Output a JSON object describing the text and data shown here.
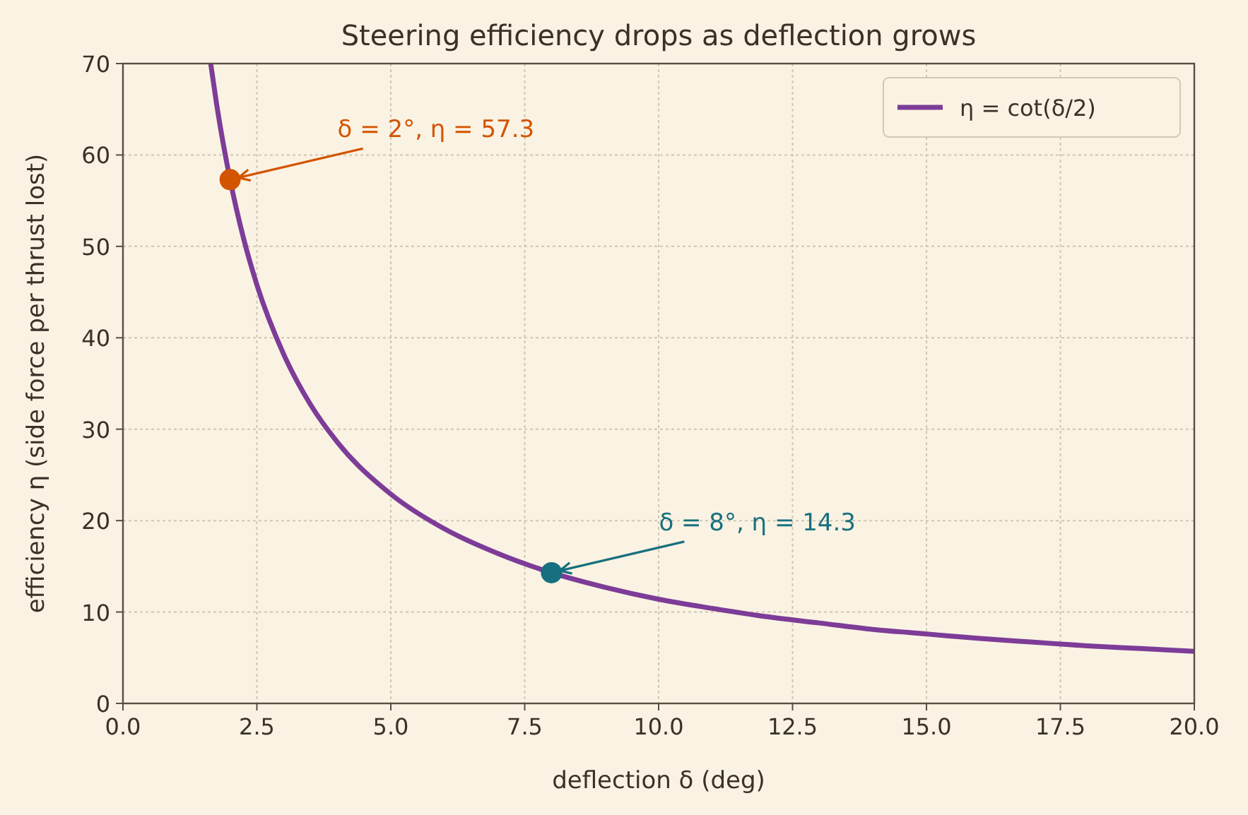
{
  "chart_data": {
    "type": "line",
    "title": "Steering efficiency drops as deflection grows",
    "xlabel": "deflection δ (deg)",
    "ylabel": "efficiency η (side force per thrust lost)",
    "xlim": [
      0,
      20
    ],
    "ylim": [
      0,
      70
    ],
    "xticks": [
      {
        "value": 0,
        "label": "0.0"
      },
      {
        "value": 2.5,
        "label": "2.5"
      },
      {
        "value": 5,
        "label": "5.0"
      },
      {
        "value": 7.5,
        "label": "7.5"
      },
      {
        "value": 10,
        "label": "10.0"
      },
      {
        "value": 12.5,
        "label": "12.5"
      },
      {
        "value": 15,
        "label": "15.0"
      },
      {
        "value": 17.5,
        "label": "17.5"
      },
      {
        "value": 20,
        "label": "20.0"
      }
    ],
    "yticks": [
      0,
      10,
      20,
      30,
      40,
      50,
      60,
      70
    ],
    "grid": true,
    "legend": "top right",
    "series": [
      {
        "name": "η = cot(δ/2)",
        "color": "#7d3c98",
        "marker": "none",
        "line_style": "solid",
        "x": [
          1.64,
          1.75,
          2,
          2.25,
          2.5,
          3,
          3.5,
          4,
          5,
          6,
          7,
          8,
          9,
          10,
          11,
          12,
          13,
          14,
          15,
          16,
          17,
          18,
          19,
          20
        ],
        "values": [
          69.9,
          65.5,
          57.3,
          50.9,
          45.8,
          38.2,
          32.7,
          28.6,
          22.9,
          19.1,
          16.4,
          14.3,
          12.7,
          11.4,
          10.4,
          9.5,
          8.8,
          8.1,
          7.6,
          7.1,
          6.7,
          6.3,
          6.0,
          5.7
        ]
      },
      {
        "type": "scatter",
        "color": "#d35400",
        "marker": "circle",
        "x": [
          2
        ],
        "values": [
          57.3
        ]
      },
      {
        "type": "scatter",
        "color": "#17707f",
        "marker": "circle",
        "x": [
          8
        ],
        "values": [
          14.3
        ]
      }
    ],
    "annotations": [
      {
        "text": "δ = 2°,  η = 57.3",
        "x": 2,
        "y": 57.3
      },
      {
        "text": "δ = 8°,  η = 14.3",
        "x": 8,
        "y": 14.3
      }
    ]
  }
}
